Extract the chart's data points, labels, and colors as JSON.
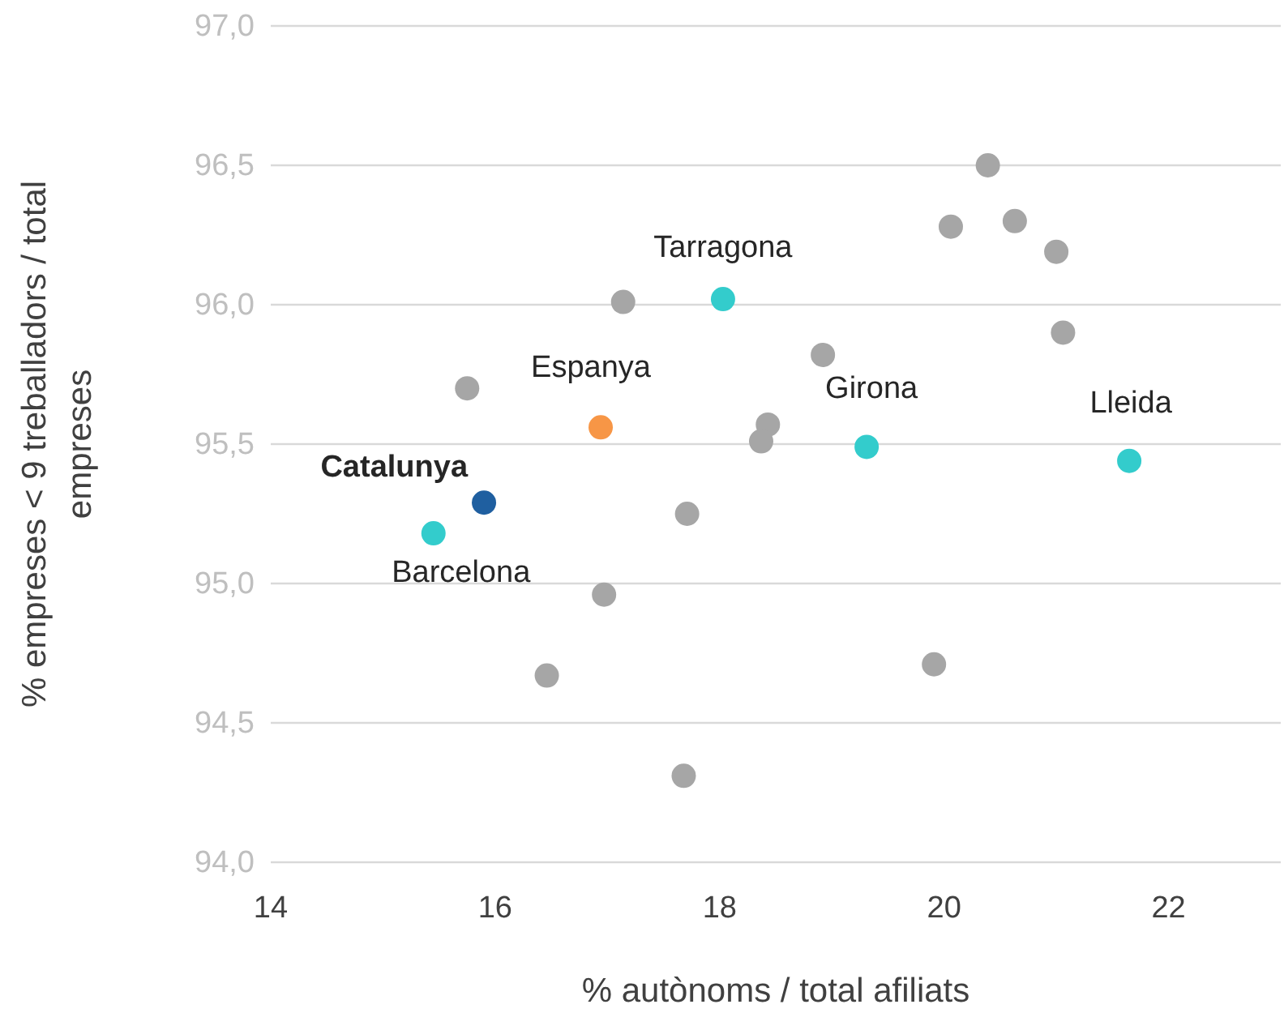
{
  "chart_data": {
    "type": "scatter",
    "xlabel": "% autònoms / total afiliats",
    "ylabel": "% empreses < 9 treballadors / total empreses",
    "xlim": [
      14,
      23
    ],
    "xticks": [
      14,
      16,
      18,
      20,
      22
    ],
    "ylim": [
      94.0,
      97.0
    ],
    "yticks": [
      {
        "value": 94.0,
        "label": "94,0"
      },
      {
        "value": 94.5,
        "label": "94,5"
      },
      {
        "value": 95.0,
        "label": "95,0"
      },
      {
        "value": 95.5,
        "label": "95,5"
      },
      {
        "value": 96.0,
        "label": "96,0"
      },
      {
        "value": 96.5,
        "label": "96,5"
      },
      {
        "value": 97.0,
        "label": "97,0"
      }
    ],
    "grid": "y",
    "marker": "circle",
    "series": [
      {
        "color": "#a6a6a6",
        "x": [
          20.39,
          20.06,
          20.63,
          21.0,
          21.06,
          17.14,
          15.75,
          18.92,
          18.43,
          18.37,
          17.71,
          16.97,
          16.46,
          19.91,
          17.68
        ],
        "values": [
          96.5,
          96.28,
          96.3,
          96.19,
          95.9,
          96.01,
          95.7,
          95.82,
          95.57,
          95.51,
          95.25,
          94.96,
          94.67,
          94.71,
          94.31
        ]
      },
      {
        "name": "Tarragona",
        "color": "#33cccc",
        "x": [
          18.03
        ],
        "values": [
          96.02
        ]
      },
      {
        "name": "Espanya",
        "color": "#f79646",
        "x": [
          16.94
        ],
        "values": [
          95.56
        ]
      },
      {
        "name": "Girona",
        "color": "#33cccc",
        "x": [
          19.31
        ],
        "values": [
          95.49
        ]
      },
      {
        "name": "Lleida",
        "color": "#33cccc",
        "x": [
          21.65
        ],
        "values": [
          95.44
        ]
      },
      {
        "name": "Catalunya",
        "color": "#1f5fa0",
        "x": [
          15.9
        ],
        "values": [
          95.29
        ]
      },
      {
        "name": "Barcelona",
        "color": "#33cccc",
        "x": [
          15.45
        ],
        "values": [
          95.18
        ]
      }
    ]
  }
}
